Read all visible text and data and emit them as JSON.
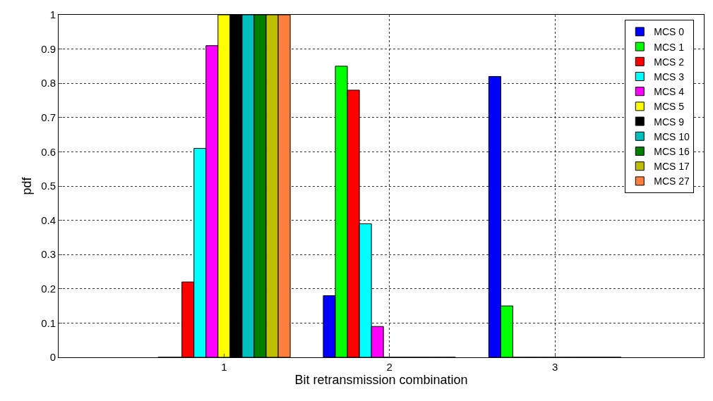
{
  "chart_data": {
    "type": "bar",
    "xlabel": "Bit retransmission combination",
    "ylabel": "pdf",
    "x": [
      1,
      2,
      3
    ],
    "xlim": [
      0,
      3.9
    ],
    "xticks": [
      1,
      2,
      3
    ],
    "ylim": [
      0,
      1
    ],
    "yticks": [
      0,
      0.1,
      0.2,
      0.3,
      0.4,
      0.5,
      0.6,
      0.7,
      0.8,
      0.9,
      1
    ],
    "grid": true,
    "line_style": "dotted",
    "legend": "top right",
    "series": [
      {
        "name": "MCS 0",
        "color": "#0000ff",
        "values": [
          0,
          0.18,
          0.82
        ]
      },
      {
        "name": "MCS 1",
        "color": "#00ff00",
        "values": [
          0,
          0.85,
          0.15
        ]
      },
      {
        "name": "MCS 2",
        "color": "#ff0000",
        "values": [
          0.22,
          0.78,
          0
        ]
      },
      {
        "name": "MCS 3",
        "color": "#00ffff",
        "values": [
          0.61,
          0.39,
          0
        ]
      },
      {
        "name": "MCS 4",
        "color": "#ff00ff",
        "values": [
          0.91,
          0.09,
          0
        ]
      },
      {
        "name": "MCS 5",
        "color": "#ffff00",
        "values": [
          1,
          0,
          0
        ]
      },
      {
        "name": "MCS 9",
        "color": "#000000",
        "values": [
          1,
          0,
          0
        ]
      },
      {
        "name": "MCS 10",
        "color": "#00bfbf",
        "values": [
          1,
          0,
          0
        ]
      },
      {
        "name": "MCS 16",
        "color": "#007f00",
        "values": [
          1,
          0,
          0
        ]
      },
      {
        "name": "MCS 17",
        "color": "#bfbf00",
        "values": [
          1,
          0,
          0
        ]
      },
      {
        "name": "MCS 27",
        "color": "#ff7f3f",
        "values": [
          1,
          0,
          0
        ]
      }
    ]
  }
}
